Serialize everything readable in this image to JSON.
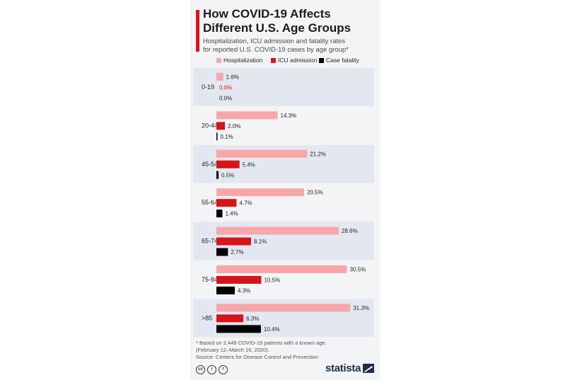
{
  "header": {
    "title": "How COVID-19 Affects\nDifferent U.S. Age Groups",
    "subtitle": "Hospitalization, ICU admission and fatality rates\nfor reported U.S. COVID-19 cases by age group*"
  },
  "footer": {
    "footnote": "* Based on 2,449 COVID-19 patients with a known age.\n  (February 12–March 16, 2020).\nSource: Centers for Disease Control and Prevention",
    "logo_text": "statista",
    "license_icons": [
      "cc",
      "i",
      "="
    ]
  },
  "colors": {
    "hospitalization": "#f9a6ab",
    "icu": "#d7141a",
    "fatality": "#000000",
    "band": "#e3e8f0",
    "accent": "#d7141a"
  },
  "chart_data": {
    "type": "bar",
    "orientation": "horizontal",
    "categories": [
      "0-19",
      "20-44",
      "45-54",
      "55-64",
      "65-74",
      "75-84",
      ">85"
    ],
    "series": [
      {
        "name": "Hospitalization",
        "values": [
          1.6,
          14.3,
          21.2,
          20.5,
          28.6,
          30.5,
          31.3
        ]
      },
      {
        "name": "ICU admission",
        "values": [
          0.0,
          2.0,
          5.4,
          4.7,
          8.1,
          10.5,
          6.3
        ]
      },
      {
        "name": "Case fatality",
        "values": [
          0.0,
          0.1,
          0.5,
          1.4,
          2.7,
          4.3,
          10.4
        ]
      }
    ],
    "value_labels": [
      [
        "1.6%",
        "0.0%",
        "0.0%"
      ],
      [
        "14.3%",
        "2.0%",
        "0.1%"
      ],
      [
        "21.2%",
        "5.4%",
        "0.5%"
      ],
      [
        "20.5%",
        "4.7%",
        "1.4%"
      ],
      [
        "28.6%",
        "8.1%",
        "2.7%"
      ],
      [
        "30.5%",
        "10.5%",
        "4.3%"
      ],
      [
        "31.3%",
        "6.3%",
        "10.4%"
      ]
    ],
    "legend_position": "top",
    "grid": false
  }
}
